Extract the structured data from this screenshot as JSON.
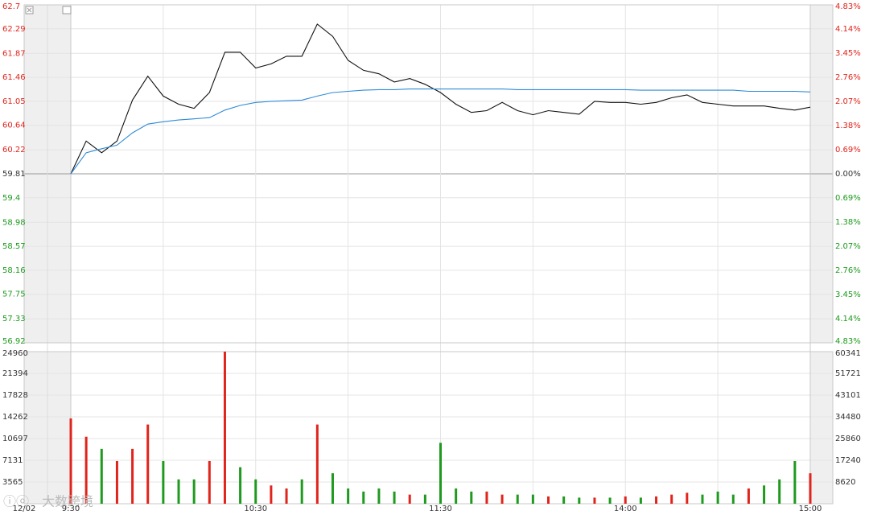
{
  "chart_data": [
    {
      "type": "line",
      "ylim": [
        56.92,
        62.7
      ],
      "yticks": [
        62.7,
        62.29,
        61.87,
        61.46,
        61.05,
        60.64,
        60.22,
        59.81,
        59.4,
        58.98,
        58.57,
        58.16,
        57.75,
        57.33,
        56.92
      ],
      "y2lim": [
        -4.83,
        4.83
      ],
      "y2ticks": [
        {
          "value": 4.83,
          "label": "4.83%"
        },
        {
          "value": 4.14,
          "label": "4.14%"
        },
        {
          "value": 3.45,
          "label": "3.45%"
        },
        {
          "value": 2.76,
          "label": "2.76%"
        },
        {
          "value": 2.07,
          "label": "2.07%"
        },
        {
          "value": 1.38,
          "label": "1.38%"
        },
        {
          "value": 0.69,
          "label": "0.69%"
        },
        {
          "value": 0,
          "label": "0.00%"
        },
        {
          "value": -0.69,
          "label": "0.69%"
        },
        {
          "value": -1.38,
          "label": "1.38%"
        },
        {
          "value": -2.07,
          "label": "2.07%"
        },
        {
          "value": -2.76,
          "label": "2.76%"
        },
        {
          "value": -3.45,
          "label": "3.45%"
        },
        {
          "value": -4.14,
          "label": "4.14%"
        },
        {
          "value": -4.83,
          "label": "4.83%"
        }
      ],
      "up_color": "#e0241c",
      "down_color": "#1e9a1e",
      "flat_color": "#333333",
      "series": [
        {
          "color": "#111111",
          "values": [
            59.81,
            60.37,
            60.17,
            60.37,
            61.07,
            61.48,
            61.14,
            61.0,
            60.93,
            61.2,
            61.89,
            61.89,
            61.62,
            61.69,
            61.82,
            61.82,
            62.37,
            62.16,
            61.75,
            61.58,
            61.52,
            61.38,
            61.44,
            61.34,
            61.2,
            61.0,
            60.86,
            60.89,
            61.03,
            60.89,
            60.82,
            60.89,
            60.86,
            60.83,
            61.05,
            61.03,
            61.03,
            61.0,
            61.03,
            61.11,
            61.16,
            61.03,
            61.0,
            60.97,
            60.97,
            60.97,
            60.93,
            60.9,
            60.95
          ]
        },
        {
          "color": "#2e8bd8",
          "values": [
            59.81,
            60.17,
            60.24,
            60.3,
            60.51,
            60.66,
            60.7,
            60.73,
            60.75,
            60.77,
            60.9,
            60.98,
            61.03,
            61.05,
            61.06,
            61.07,
            61.14,
            61.2,
            61.22,
            61.24,
            61.25,
            61.25,
            61.26,
            61.26,
            61.26,
            61.26,
            61.26,
            61.26,
            61.26,
            61.25,
            61.25,
            61.25,
            61.25,
            61.25,
            61.25,
            61.25,
            61.25,
            61.24,
            61.24,
            61.24,
            61.24,
            61.24,
            61.24,
            61.24,
            61.22,
            61.22,
            61.22,
            61.22,
            61.21
          ]
        }
      ]
    },
    {
      "type": "bar",
      "date_label": "12/02",
      "categories": [
        "9:30",
        null,
        null,
        null,
        null,
        null,
        null,
        null,
        null,
        null,
        null,
        null,
        "10:30",
        null,
        null,
        null,
        null,
        null,
        null,
        null,
        null,
        null,
        null,
        null,
        "11:30",
        null,
        null,
        null,
        null,
        null,
        null,
        null,
        null,
        null,
        null,
        null,
        "14:00",
        null,
        null,
        null,
        null,
        null,
        null,
        null,
        null,
        null,
        null,
        null,
        "15:00"
      ],
      "ylim": [
        0,
        24960
      ],
      "yticks": [
        24960,
        21394,
        17828,
        14262,
        10697,
        7131,
        3565
      ],
      "y2lim": [
        0,
        60341
      ],
      "y2ticks": [
        60341,
        51721,
        43101,
        34480,
        25860,
        17240,
        8620
      ],
      "values": [
        14000,
        11000,
        9000,
        7000,
        9000,
        13000,
        7000,
        4000,
        4000,
        7000,
        24960,
        6000,
        4000,
        3000,
        2500,
        4000,
        13000,
        5000,
        2500,
        2000,
        2500,
        2000,
        1500,
        1500,
        10000,
        2500,
        2000,
        2000,
        1500,
        1500,
        1500,
        1200,
        1200,
        1000,
        1000,
        1000,
        1200,
        1000,
        1200,
        1500,
        1800,
        1500,
        2000,
        1500,
        2500,
        3000,
        4000,
        7000,
        5000
      ],
      "colors": [
        "#e0241c",
        "#e0241c",
        "#1e9a1e",
        "#e0241c",
        "#e0241c",
        "#e0241c",
        "#1e9a1e",
        "#1e9a1e",
        "#1e9a1e",
        "#e0241c",
        "#e0241c",
        "#1e9a1e",
        "#1e9a1e",
        "#e0241c",
        "#e0241c",
        "#1e9a1e",
        "#e0241c",
        "#1e9a1e",
        "#1e9a1e",
        "#1e9a1e",
        "#1e9a1e",
        "#1e9a1e",
        "#e0241c",
        "#1e9a1e",
        "#1e9a1e",
        "#1e9a1e",
        "#1e9a1e",
        "#e0241c",
        "#e0241c",
        "#1e9a1e",
        "#1e9a1e",
        "#e0241c",
        "#1e9a1e",
        "#1e9a1e",
        "#e0241c",
        "#1e9a1e",
        "#e0241c",
        "#1e9a1e",
        "#e0241c",
        "#e0241c",
        "#e0241c",
        "#1e9a1e",
        "#1e9a1e",
        "#1e9a1e",
        "#e0241c",
        "#1e9a1e",
        "#1e9a1e",
        "#1e9a1e",
        "#e0241c"
      ]
    }
  ],
  "watermark": "大数跨境"
}
